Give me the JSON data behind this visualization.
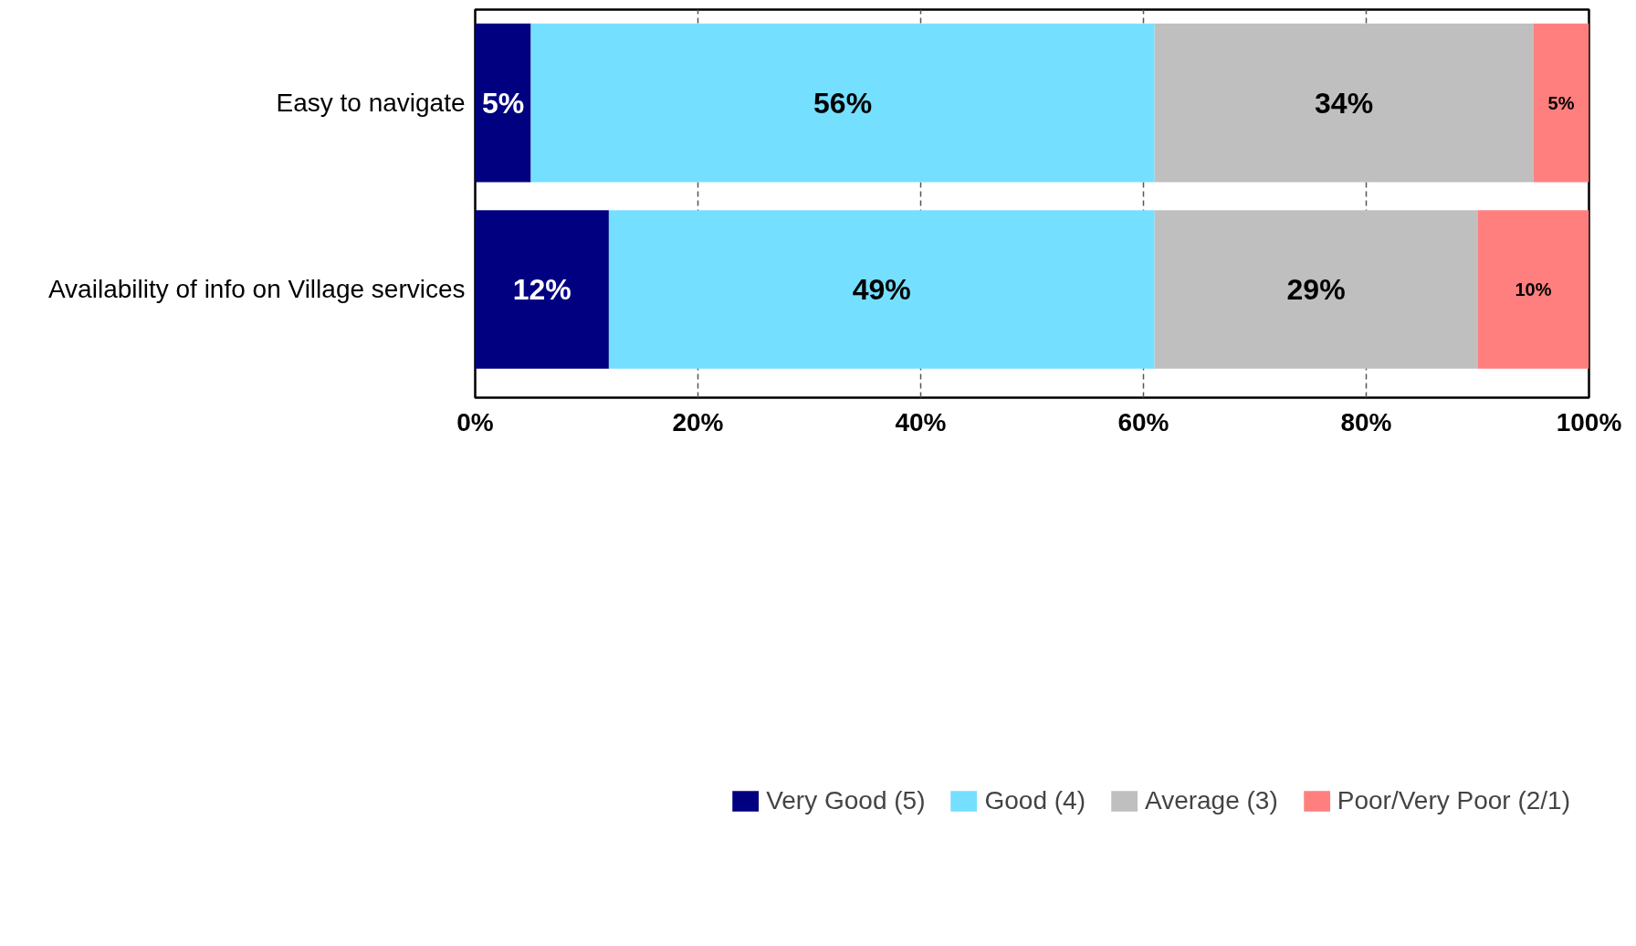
{
  "chart_data": {
    "type": "bar",
    "orientation": "horizontal",
    "stacked": true,
    "categories": [
      "Easy to navigate",
      "Availability of info on Village services"
    ],
    "series": [
      {
        "name": "Very Good (5)",
        "color": "#000080",
        "values": [
          5,
          12
        ],
        "value_labels": [
          "5%",
          "12%"
        ]
      },
      {
        "name": "Good (4)",
        "color": "#75dfff",
        "values": [
          56,
          49
        ],
        "value_labels": [
          "56%",
          "49%"
        ]
      },
      {
        "name": "Average (3)",
        "color": "#bfbfbf",
        "values": [
          34,
          29
        ],
        "value_labels": [
          "34%",
          "29%"
        ]
      },
      {
        "name": "Poor/Very Poor (2/1)",
        "color": "#ff7f7f",
        "values": [
          5,
          10
        ],
        "value_labels": [
          "5%",
          "10%"
        ]
      }
    ],
    "xlim": [
      0,
      100
    ],
    "xticks": [
      {
        "value": 0,
        "label": "0%"
      },
      {
        "value": 20,
        "label": "20%"
      },
      {
        "value": 40,
        "label": "40%"
      },
      {
        "value": 60,
        "label": "60%"
      },
      {
        "value": 80,
        "label": "80%"
      },
      {
        "value": 100,
        "label": "100%"
      }
    ],
    "grid": "x",
    "legend": "bottom"
  }
}
